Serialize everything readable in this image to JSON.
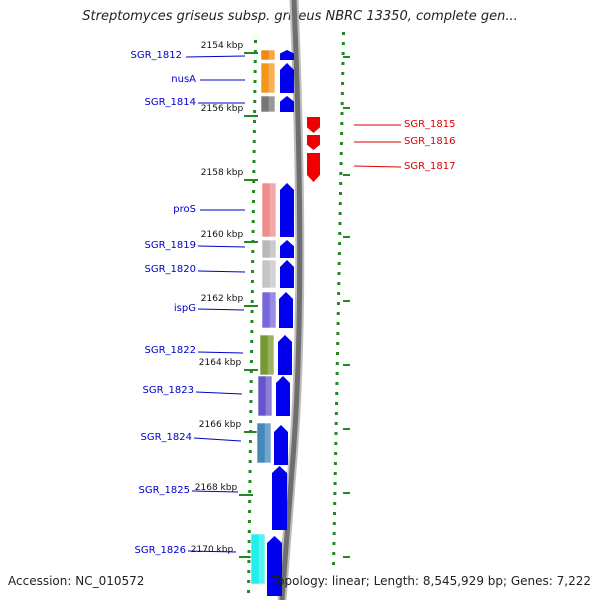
{
  "title": "Streptomyces griseus subsp. griseus NBRC 13350, complete gen...",
  "footer": {
    "accession": "Accession: NC_010572",
    "summary": "Topology: linear; Length: 8,545,929 bp; Genes: 7,222"
  },
  "colors": {
    "forward_label": "#0000cc",
    "reverse_label": "#dd0000",
    "forward_arrow": "#0000ee",
    "reverse_arrow": "#ee0000",
    "tick": "#228822",
    "backbone": "#8a8a8a"
  },
  "ruler": {
    "unit": "kbp",
    "labels": [
      "2154 kbp",
      "2156 kbp",
      "2158 kbp",
      "2160 kbp",
      "2162 kbp",
      "2164 kbp",
      "2166 kbp",
      "2168 kbp",
      "2170 kbp"
    ]
  },
  "forward_genes": [
    {
      "name": "SGR_1812",
      "color": "#ee8811"
    },
    {
      "name": "nusA",
      "color": "#f5961c"
    },
    {
      "name": "SGR_1814",
      "color": "#777777"
    },
    {
      "name": "proS",
      "color": "#ef8c8c"
    },
    {
      "name": "SGR_1819",
      "color": "#b8b8b8"
    },
    {
      "name": "SGR_1820",
      "color": "#c4c4c4"
    },
    {
      "name": "ispG",
      "color": "#7766dd"
    },
    {
      "name": "SGR_1822",
      "color": "#779933"
    },
    {
      "name": "SGR_1823",
      "color": "#6655cc"
    },
    {
      "name": "SGR_1824",
      "color": "#4488bb"
    },
    {
      "name": "SGR_1825",
      "color": ""
    },
    {
      "name": "SGR_1826",
      "color": "#22eeee"
    }
  ],
  "reverse_genes": [
    {
      "name": "SGR_1815"
    },
    {
      "name": "SGR_1816"
    },
    {
      "name": "SGR_1817"
    }
  ]
}
